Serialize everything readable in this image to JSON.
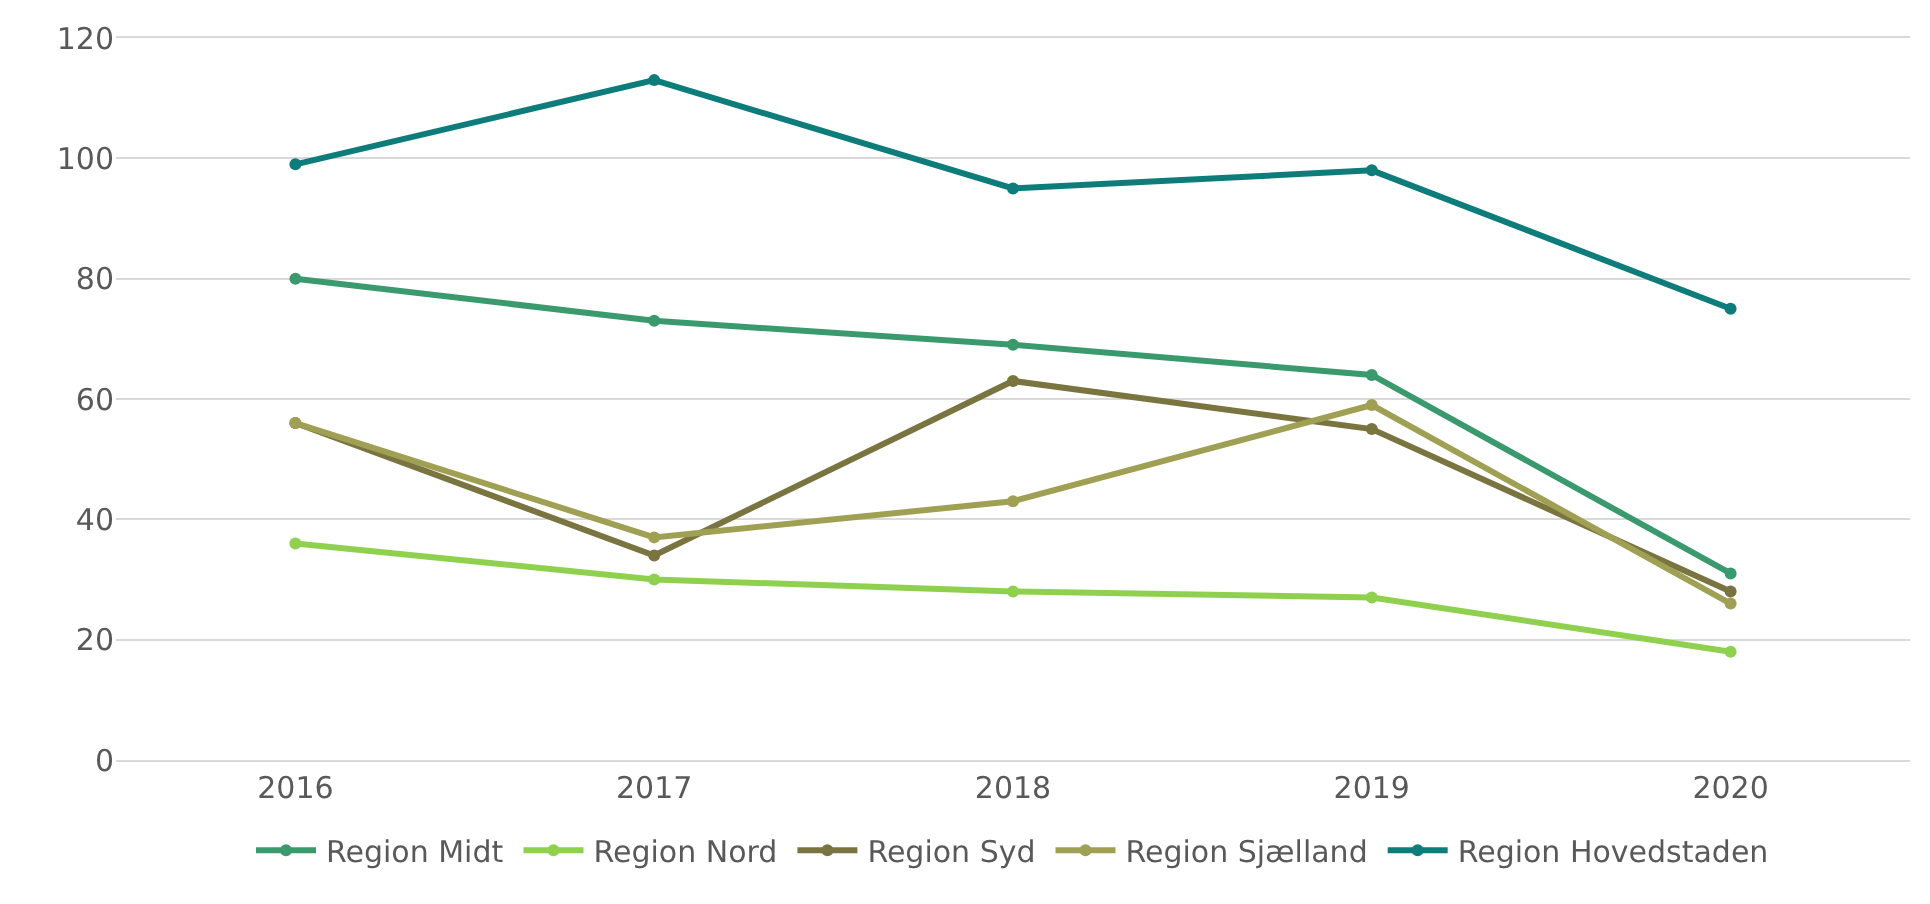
{
  "chart_data": {
    "type": "line",
    "categories": [
      "2016",
      "2017",
      "2018",
      "2019",
      "2020"
    ],
    "series": [
      {
        "name": "Region Midt",
        "color": "#3a9a6e",
        "values": [
          80,
          73,
          69,
          64,
          31
        ]
      },
      {
        "name": "Region Nord",
        "color": "#8fd14f",
        "values": [
          36,
          30,
          28,
          27,
          18
        ]
      },
      {
        "name": "Region Syd",
        "color": "#7a7440",
        "values": [
          56,
          34,
          63,
          55,
          28
        ]
      },
      {
        "name": "Region Sjælland",
        "color": "#a0a055",
        "values": [
          56,
          37,
          43,
          59,
          26
        ]
      },
      {
        "name": "Region Hovedstaden",
        "color": "#0e7c7b",
        "values": [
          99,
          113,
          95,
          98,
          75
        ]
      }
    ],
    "ylim": [
      0,
      120
    ],
    "yticks": [
      0,
      20,
      40,
      60,
      80,
      100,
      120
    ],
    "grid": "y",
    "legend": "bottom",
    "marker": "circle",
    "line_style": "solid"
  }
}
